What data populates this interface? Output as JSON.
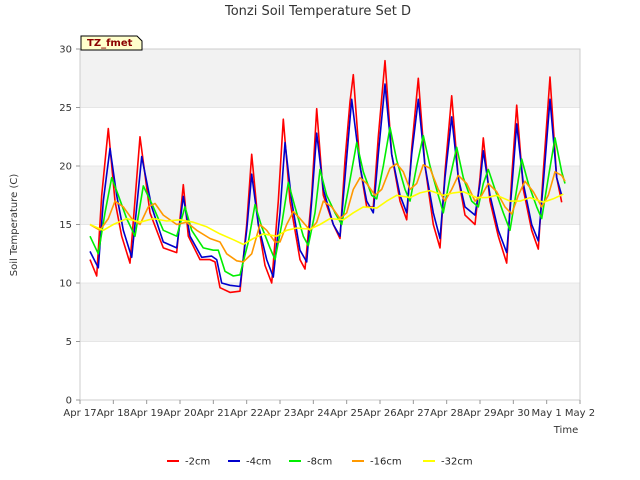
{
  "chart_data": {
    "type": "line",
    "title": "Tonzi Soil Temperature Set D",
    "xlabel": "Time",
    "ylabel": "Soil Temperature (C)",
    "ylim": [
      0,
      30
    ],
    "yticks": [
      0,
      5,
      10,
      15,
      20,
      25,
      30
    ],
    "xlim": [
      0,
      15
    ],
    "xticks": [
      0,
      1,
      2,
      3,
      4,
      5,
      6,
      7,
      8,
      9,
      10,
      11,
      12,
      13,
      14,
      15
    ],
    "xtick_labels": [
      "Apr 17",
      "Apr 18",
      "Apr 19",
      "Apr 20",
      "Apr 21",
      "Apr 22",
      "Apr 23",
      "Apr 24",
      "Apr 25",
      "Apr 26",
      "Apr 27",
      "Apr 28",
      "Apr 29",
      "Apr 30",
      "May 1",
      "May 2"
    ],
    "grid": "horizontal bands",
    "legend_position": "bottom-center",
    "annotation": "TZ_fmet",
    "x_note": "x values are days counted from Apr 17 as labeled on axis",
    "series": [
      {
        "name": "-2cm",
        "color": "#ff0000",
        "points": [
          [
            0.3,
            12
          ],
          [
            0.5,
            10.6
          ],
          [
            0.65,
            17.5
          ],
          [
            0.85,
            23.2
          ],
          [
            1.05,
            17
          ],
          [
            1.25,
            14
          ],
          [
            1.5,
            11.7
          ],
          [
            1.8,
            22.5
          ],
          [
            2.1,
            16
          ],
          [
            2.5,
            13
          ],
          [
            2.9,
            12.6
          ],
          [
            3.1,
            18.4
          ],
          [
            3.25,
            14
          ],
          [
            3.6,
            12
          ],
          [
            3.9,
            12
          ],
          [
            4.05,
            11.8
          ],
          [
            4.2,
            9.6
          ],
          [
            4.5,
            9.2
          ],
          [
            4.8,
            9.3
          ],
          [
            5.0,
            15
          ],
          [
            5.15,
            21
          ],
          [
            5.35,
            15
          ],
          [
            5.55,
            11.5
          ],
          [
            5.75,
            10
          ],
          [
            5.95,
            17
          ],
          [
            6.1,
            24
          ],
          [
            6.3,
            17
          ],
          [
            6.6,
            12
          ],
          [
            6.75,
            11.2
          ],
          [
            6.95,
            17.5
          ],
          [
            7.1,
            24.9
          ],
          [
            7.3,
            17.5
          ],
          [
            7.6,
            15
          ],
          [
            7.8,
            13.8
          ],
          [
            7.95,
            20.5
          ],
          [
            8.1,
            25.5
          ],
          [
            8.2,
            27.8
          ],
          [
            8.4,
            20
          ],
          [
            8.6,
            16.5
          ],
          [
            8.8,
            16.5
          ],
          [
            8.95,
            22.5
          ],
          [
            9.15,
            29
          ],
          [
            9.35,
            21
          ],
          [
            9.6,
            17
          ],
          [
            9.8,
            15.4
          ],
          [
            9.95,
            21.5
          ],
          [
            10.15,
            27.5
          ],
          [
            10.35,
            20
          ],
          [
            10.6,
            15
          ],
          [
            10.8,
            13
          ],
          [
            10.95,
            19.5
          ],
          [
            11.15,
            26
          ],
          [
            11.35,
            19
          ],
          [
            11.55,
            15.8
          ],
          [
            11.85,
            15
          ],
          [
            12.0,
            19
          ],
          [
            12.1,
            22.4
          ],
          [
            12.3,
            17
          ],
          [
            12.55,
            14
          ],
          [
            12.8,
            11.7
          ],
          [
            12.95,
            19
          ],
          [
            13.1,
            25.2
          ],
          [
            13.3,
            18
          ],
          [
            13.55,
            14.5
          ],
          [
            13.75,
            12.9
          ],
          [
            13.9,
            19.5
          ],
          [
            14.1,
            27.6
          ],
          [
            14.3,
            19
          ],
          [
            14.45,
            16.9
          ]
        ]
      },
      {
        "name": "-4cm",
        "color": "#0000cc",
        "points": [
          [
            0.3,
            12.7
          ],
          [
            0.55,
            11.3
          ],
          [
            0.7,
            17
          ],
          [
            0.9,
            21.5
          ],
          [
            1.1,
            17.5
          ],
          [
            1.3,
            14.5
          ],
          [
            1.55,
            12.2
          ],
          [
            1.85,
            20.8
          ],
          [
            2.15,
            16.5
          ],
          [
            2.5,
            13.5
          ],
          [
            2.9,
            13
          ],
          [
            3.1,
            17.4
          ],
          [
            3.3,
            14
          ],
          [
            3.65,
            12.2
          ],
          [
            3.95,
            12.3
          ],
          [
            4.1,
            12
          ],
          [
            4.25,
            10
          ],
          [
            4.5,
            9.8
          ],
          [
            4.8,
            9.7
          ],
          [
            5.0,
            14.5
          ],
          [
            5.15,
            19.3
          ],
          [
            5.35,
            15
          ],
          [
            5.6,
            12
          ],
          [
            5.8,
            10.5
          ],
          [
            6.0,
            16
          ],
          [
            6.15,
            22
          ],
          [
            6.35,
            17
          ],
          [
            6.6,
            12.8
          ],
          [
            6.8,
            11.8
          ],
          [
            6.95,
            17
          ],
          [
            7.1,
            22.8
          ],
          [
            7.3,
            18
          ],
          [
            7.6,
            15
          ],
          [
            7.8,
            14
          ],
          [
            7.95,
            19
          ],
          [
            8.15,
            25.7
          ],
          [
            8.4,
            20
          ],
          [
            8.6,
            17
          ],
          [
            8.8,
            16
          ],
          [
            8.95,
            21
          ],
          [
            9.15,
            27
          ],
          [
            9.35,
            21
          ],
          [
            9.6,
            17.5
          ],
          [
            9.8,
            16
          ],
          [
            9.95,
            21
          ],
          [
            10.15,
            25.7
          ],
          [
            10.35,
            20
          ],
          [
            10.6,
            16
          ],
          [
            10.8,
            13.8
          ],
          [
            10.95,
            19
          ],
          [
            11.15,
            24.2
          ],
          [
            11.35,
            19
          ],
          [
            11.55,
            16.5
          ],
          [
            11.85,
            15.8
          ],
          [
            12.0,
            18.5
          ],
          [
            12.1,
            21.3
          ],
          [
            12.3,
            17.5
          ],
          [
            12.55,
            14.5
          ],
          [
            12.8,
            12.6
          ],
          [
            12.95,
            18
          ],
          [
            13.1,
            23.6
          ],
          [
            13.3,
            18.5
          ],
          [
            13.55,
            15
          ],
          [
            13.75,
            13.6
          ],
          [
            13.9,
            18.5
          ],
          [
            14.1,
            25.7
          ],
          [
            14.3,
            19
          ],
          [
            14.45,
            17.5
          ]
        ]
      },
      {
        "name": "-8cm",
        "color": "#00ee00",
        "points": [
          [
            0.3,
            14
          ],
          [
            0.55,
            12.5
          ],
          [
            0.75,
            16
          ],
          [
            0.95,
            19
          ],
          [
            1.15,
            17.5
          ],
          [
            1.4,
            15.5
          ],
          [
            1.65,
            14
          ],
          [
            1.9,
            18.3
          ],
          [
            2.2,
            16.5
          ],
          [
            2.5,
            14.5
          ],
          [
            2.9,
            14
          ],
          [
            3.15,
            16.5
          ],
          [
            3.35,
            14.5
          ],
          [
            3.7,
            13
          ],
          [
            4.0,
            12.8
          ],
          [
            4.15,
            12.8
          ],
          [
            4.35,
            11
          ],
          [
            4.6,
            10.6
          ],
          [
            4.8,
            10.7
          ],
          [
            5.05,
            13.5
          ],
          [
            5.25,
            16.7
          ],
          [
            5.45,
            14.8
          ],
          [
            5.7,
            13
          ],
          [
            5.85,
            12
          ],
          [
            6.05,
            15
          ],
          [
            6.25,
            18.6
          ],
          [
            6.45,
            16.5
          ],
          [
            6.7,
            14
          ],
          [
            6.85,
            13.2
          ],
          [
            7.05,
            16
          ],
          [
            7.2,
            19.7
          ],
          [
            7.4,
            17.5
          ],
          [
            7.65,
            16
          ],
          [
            7.85,
            15
          ],
          [
            8.05,
            18
          ],
          [
            8.3,
            22
          ],
          [
            8.5,
            19.5
          ],
          [
            8.75,
            17.5
          ],
          [
            8.9,
            17.2
          ],
          [
            9.1,
            20
          ],
          [
            9.3,
            23.3
          ],
          [
            9.5,
            20.5
          ],
          [
            9.75,
            18
          ],
          [
            9.9,
            17
          ],
          [
            10.1,
            20
          ],
          [
            10.3,
            22.6
          ],
          [
            10.5,
            20
          ],
          [
            10.75,
            17.5
          ],
          [
            10.9,
            16
          ],
          [
            11.1,
            19
          ],
          [
            11.3,
            21.6
          ],
          [
            11.5,
            19
          ],
          [
            11.75,
            17
          ],
          [
            11.95,
            16.5
          ],
          [
            12.1,
            18.5
          ],
          [
            12.25,
            19.7
          ],
          [
            12.45,
            18
          ],
          [
            12.7,
            16
          ],
          [
            12.9,
            14.5
          ],
          [
            13.1,
            18
          ],
          [
            13.25,
            20.6
          ],
          [
            13.45,
            18.5
          ],
          [
            13.7,
            16.5
          ],
          [
            13.85,
            15.5
          ],
          [
            14.05,
            19
          ],
          [
            14.25,
            22.4
          ],
          [
            14.45,
            19.5
          ],
          [
            14.55,
            18.5
          ]
        ]
      },
      {
        "name": "-16cm",
        "color": "#ff9900",
        "points": [
          [
            0.3,
            15
          ],
          [
            0.6,
            14.5
          ],
          [
            0.85,
            15.5
          ],
          [
            1.05,
            17
          ],
          [
            1.3,
            16.5
          ],
          [
            1.55,
            15.5
          ],
          [
            1.8,
            15
          ],
          [
            2.05,
            16.5
          ],
          [
            2.25,
            16.8
          ],
          [
            2.5,
            15.8
          ],
          [
            2.9,
            15
          ],
          [
            3.2,
            15.2
          ],
          [
            3.5,
            14.5
          ],
          [
            3.9,
            13.8
          ],
          [
            4.2,
            13.5
          ],
          [
            4.4,
            12.5
          ],
          [
            4.7,
            11.9
          ],
          [
            4.9,
            11.8
          ],
          [
            5.15,
            12.5
          ],
          [
            5.4,
            15
          ],
          [
            5.6,
            14.5
          ],
          [
            5.85,
            13.5
          ],
          [
            6.0,
            13.5
          ],
          [
            6.2,
            15
          ],
          [
            6.4,
            16.1
          ],
          [
            6.6,
            15.5
          ],
          [
            6.9,
            14.5
          ],
          [
            7.1,
            15.2
          ],
          [
            7.3,
            17
          ],
          [
            7.55,
            16.5
          ],
          [
            7.8,
            15.5
          ],
          [
            8.0,
            16
          ],
          [
            8.2,
            18
          ],
          [
            8.4,
            19
          ],
          [
            8.6,
            18.5
          ],
          [
            8.85,
            17.5
          ],
          [
            9.05,
            18
          ],
          [
            9.3,
            19.8
          ],
          [
            9.5,
            20.2
          ],
          [
            9.7,
            19.5
          ],
          [
            9.9,
            18
          ],
          [
            10.1,
            18.5
          ],
          [
            10.3,
            20.1
          ],
          [
            10.5,
            19.8
          ],
          [
            10.75,
            18
          ],
          [
            10.95,
            17
          ],
          [
            11.15,
            18
          ],
          [
            11.35,
            19.2
          ],
          [
            11.6,
            18.5
          ],
          [
            11.85,
            17
          ],
          [
            12.05,
            17.5
          ],
          [
            12.25,
            18.5
          ],
          [
            12.5,
            17.8
          ],
          [
            12.75,
            16.5
          ],
          [
            12.95,
            15.9
          ],
          [
            13.15,
            17.5
          ],
          [
            13.35,
            18.7
          ],
          [
            13.6,
            17.8
          ],
          [
            13.85,
            16.5
          ],
          [
            14.05,
            17.5
          ],
          [
            14.25,
            19.5
          ],
          [
            14.45,
            19.2
          ],
          [
            14.55,
            18.7
          ]
        ]
      },
      {
        "name": "-32cm",
        "color": "#ffff00",
        "points": [
          [
            0.3,
            15
          ],
          [
            0.7,
            14.5
          ],
          [
            1.0,
            15
          ],
          [
            1.4,
            15.5
          ],
          [
            1.8,
            15.2
          ],
          [
            2.2,
            15.5
          ],
          [
            2.6,
            15.3
          ],
          [
            3.0,
            15.4
          ],
          [
            3.4,
            15.2
          ],
          [
            3.8,
            14.8
          ],
          [
            4.2,
            14.2
          ],
          [
            4.6,
            13.7
          ],
          [
            4.9,
            13.3
          ],
          [
            5.2,
            13.8
          ],
          [
            5.5,
            14.2
          ],
          [
            5.9,
            14
          ],
          [
            6.2,
            14.5
          ],
          [
            6.5,
            14.7
          ],
          [
            6.9,
            14.6
          ],
          [
            7.2,
            15
          ],
          [
            7.5,
            15.5
          ],
          [
            7.9,
            15.4
          ],
          [
            8.2,
            16
          ],
          [
            8.5,
            16.5
          ],
          [
            8.9,
            16.4
          ],
          [
            9.2,
            17
          ],
          [
            9.5,
            17.5
          ],
          [
            9.9,
            17.3
          ],
          [
            10.2,
            17.7
          ],
          [
            10.5,
            17.9
          ],
          [
            10.9,
            17.5
          ],
          [
            11.2,
            17.7
          ],
          [
            11.5,
            17.8
          ],
          [
            11.9,
            17.3
          ],
          [
            12.2,
            17.3
          ],
          [
            12.5,
            17.5
          ],
          [
            12.9,
            17
          ],
          [
            13.2,
            17
          ],
          [
            13.5,
            17.3
          ],
          [
            13.9,
            16.9
          ],
          [
            14.2,
            17.2
          ],
          [
            14.5,
            17.6
          ]
        ]
      }
    ]
  }
}
